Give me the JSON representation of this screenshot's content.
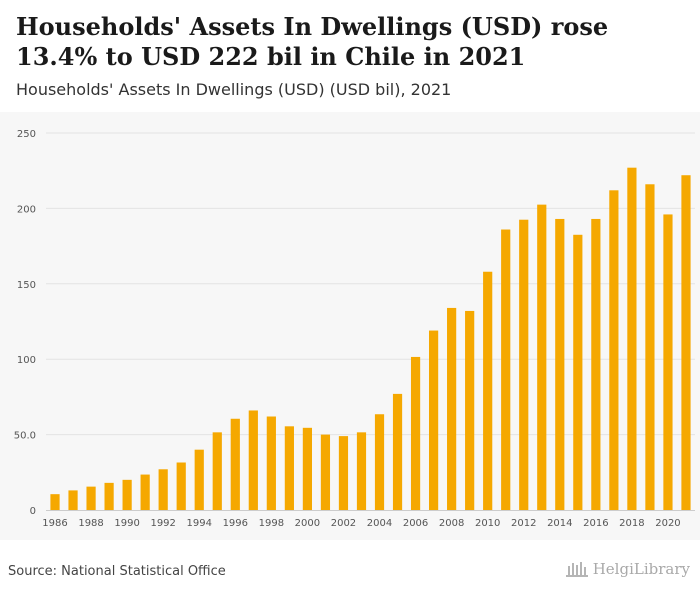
{
  "title": "Households' Assets In Dwellings (USD) rose 13.4% to USD 222 bil in Chile in 2021",
  "subtitle": "Households' Assets In Dwellings (USD) (USD bil), 2021",
  "source": "Source: National Statistical Office",
  "logo_text": "HelgiLibrary",
  "colors": {
    "bar": "#f5a800",
    "grid": "#e3e3e3",
    "axis": "#cccccc"
  },
  "chart_data": {
    "type": "bar",
    "title": "Households' Assets In Dwellings (USD) (USD bil), 2021",
    "xlabel": "",
    "ylabel": "USD bil",
    "ylim": [
      0,
      250
    ],
    "y_ticks": [
      {
        "value": 0,
        "label": "0"
      },
      {
        "value": 50,
        "label": "50.0"
      },
      {
        "value": 100,
        "label": "100"
      },
      {
        "value": 150,
        "label": "150"
      },
      {
        "value": 200,
        "label": "200"
      },
      {
        "value": 250,
        "label": "250"
      }
    ],
    "x_tick_labels": [
      "1986",
      "1988",
      "1990",
      "1992",
      "1994",
      "1996",
      "1998",
      "2000",
      "2002",
      "2004",
      "2006",
      "2008",
      "2010",
      "2012",
      "2014",
      "2016",
      "2018",
      "2020"
    ],
    "categories": [
      "1986",
      "1987",
      "1988",
      "1989",
      "1990",
      "1991",
      "1992",
      "1993",
      "1994",
      "1995",
      "1996",
      "1997",
      "1998",
      "1999",
      "2000",
      "2001",
      "2002",
      "2003",
      "2004",
      "2005",
      "2006",
      "2007",
      "2008",
      "2009",
      "2010",
      "2011",
      "2012",
      "2013",
      "2014",
      "2015",
      "2016",
      "2017",
      "2018",
      "2019",
      "2020",
      "2021"
    ],
    "values": [
      10.5,
      13,
      15.5,
      18,
      20,
      23.5,
      27,
      31.5,
      40,
      51.5,
      60.5,
      66,
      62,
      55.5,
      54.5,
      50,
      49,
      51.5,
      63.5,
      77,
      101.5,
      119,
      134,
      132,
      158,
      186,
      192.5,
      202.5,
      193,
      182.5,
      193,
      212,
      227,
      216,
      196,
      222
    ]
  }
}
